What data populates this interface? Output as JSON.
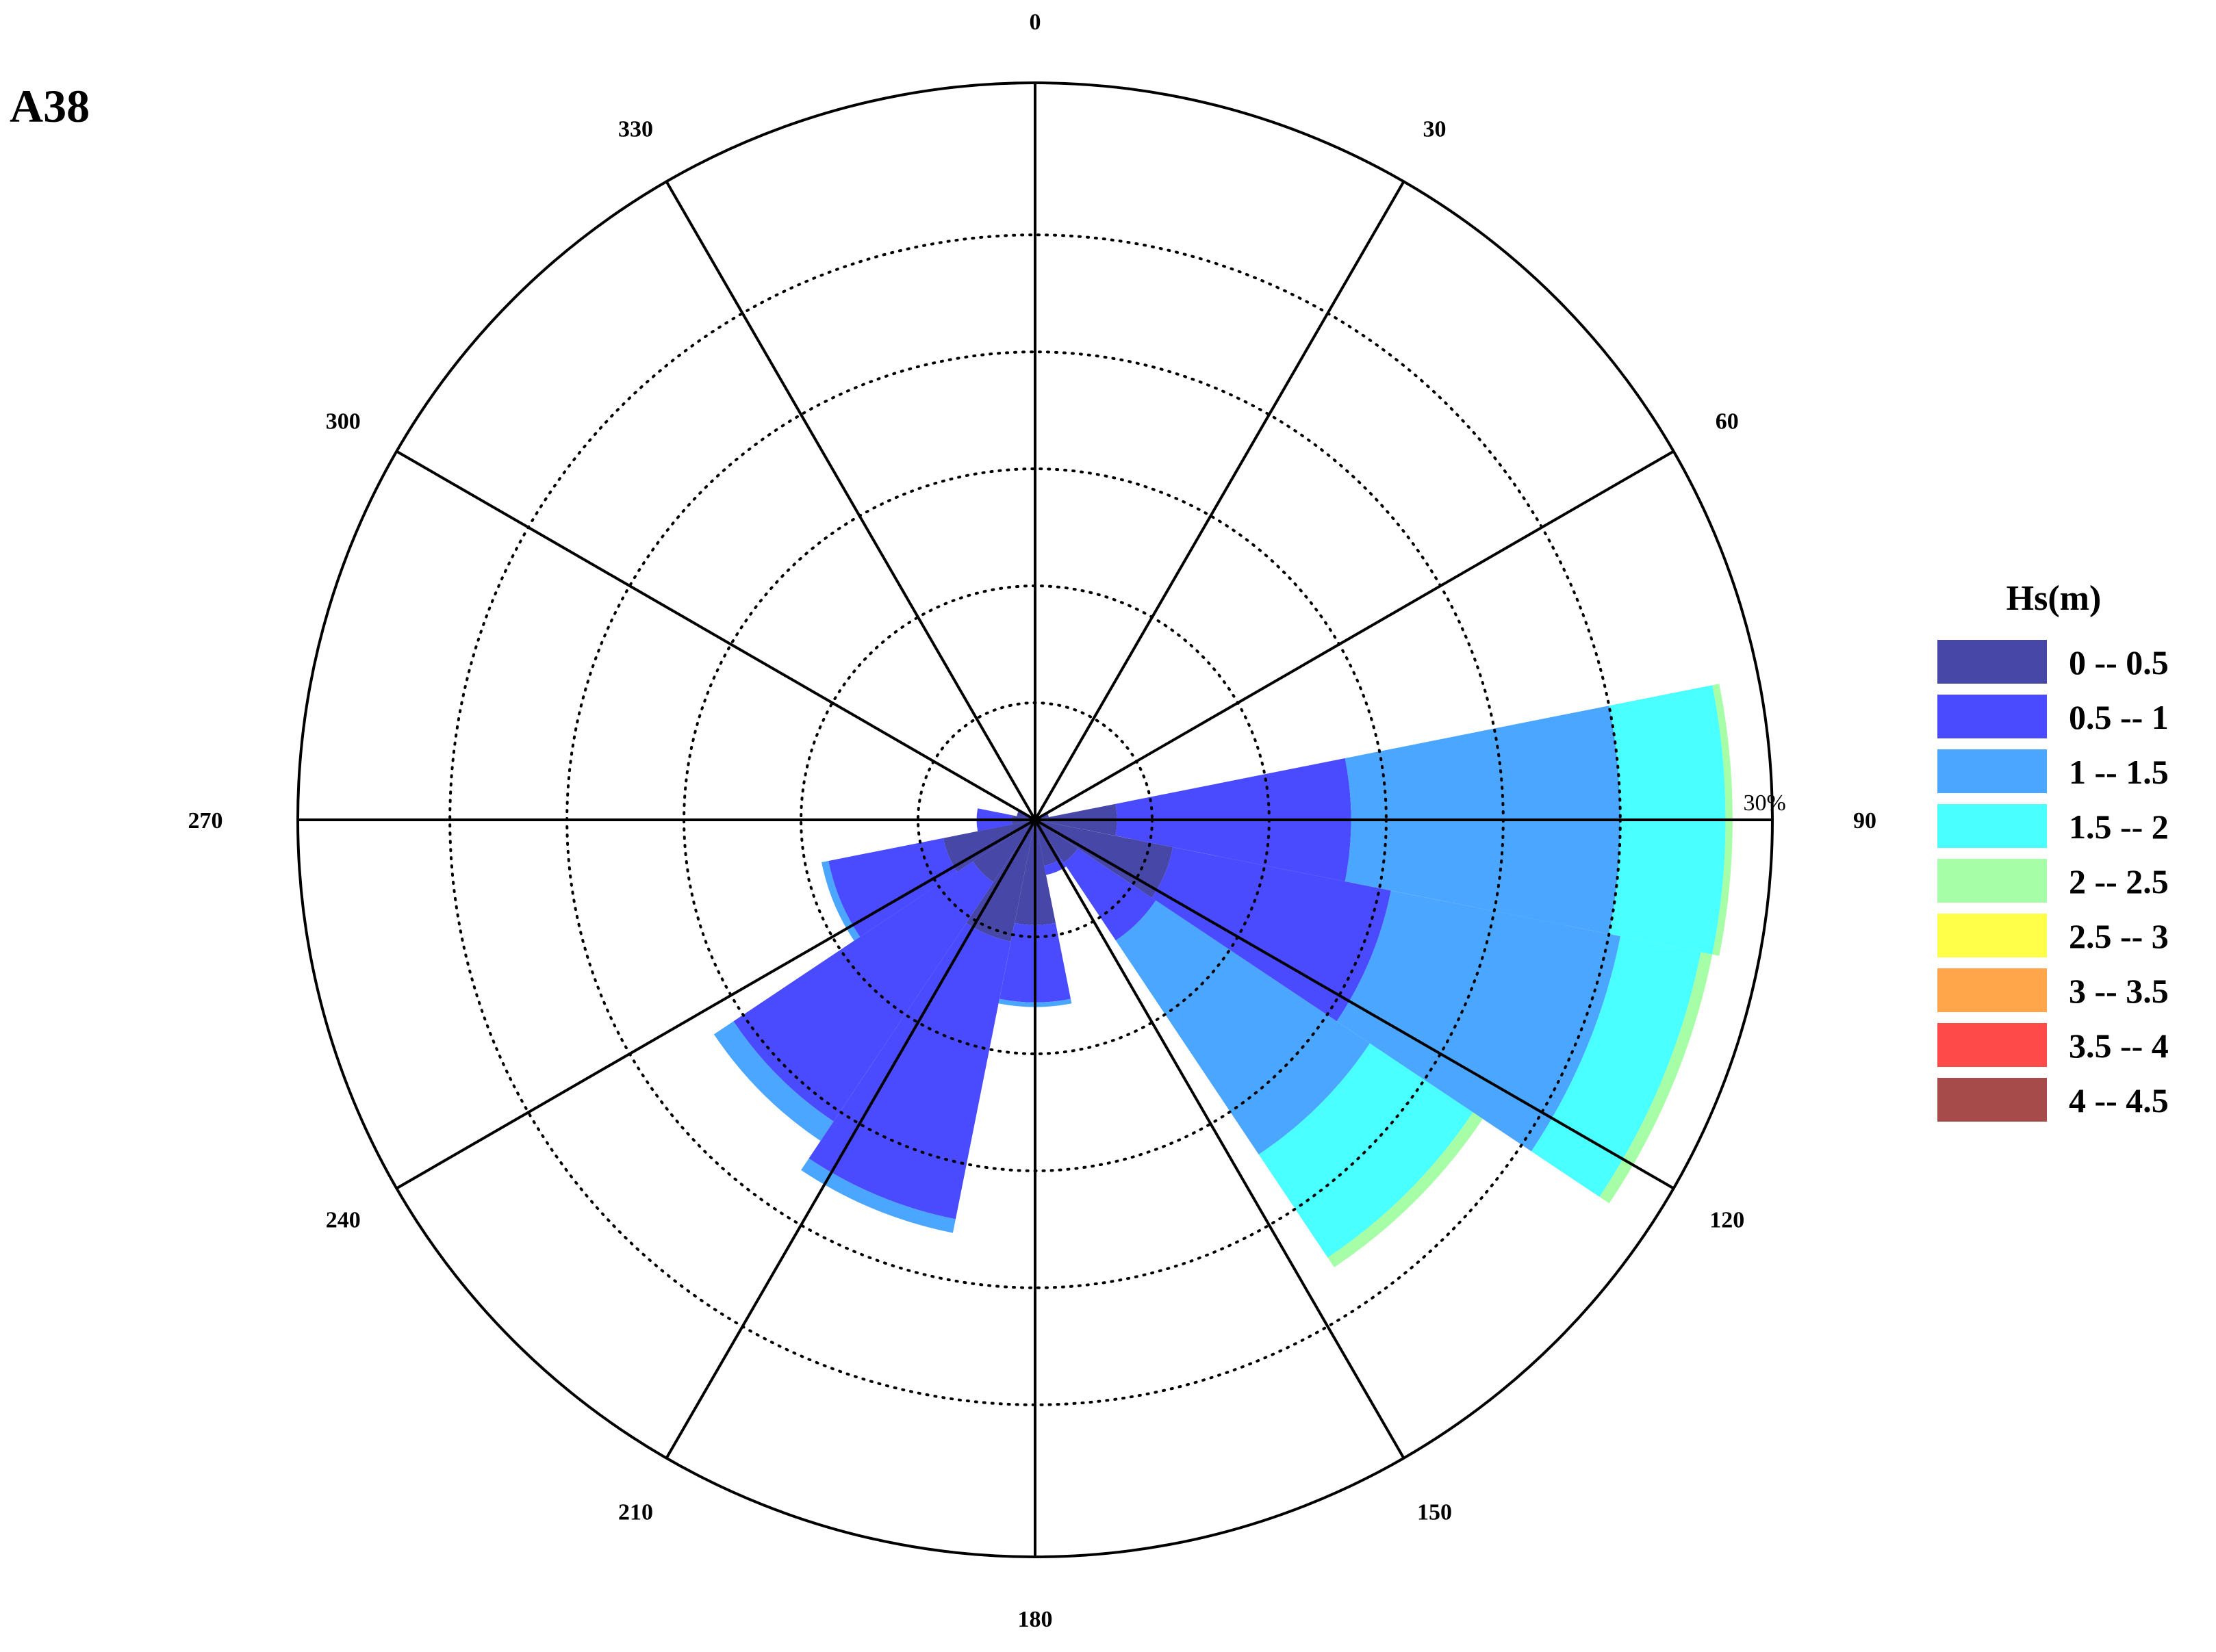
{
  "panel_label": "A38",
  "chart_data": {
    "type": "wind_rose",
    "title": "",
    "angle_labels": [
      "0",
      "30",
      "60",
      "90",
      "120",
      "150",
      "180",
      "210",
      "240",
      "270",
      "300",
      "330"
    ],
    "radial_max_percent": 30,
    "radial_max_label": "30%",
    "legend_title": "Hs(m)",
    "bins": [
      {
        "label": "0 -- 0.5",
        "color": "#4747a8"
      },
      {
        "label": "0.5 -- 1",
        "color": "#4a4aff"
      },
      {
        "label": "1 -- 1.5",
        "color": "#4aa6ff"
      },
      {
        "label": "1.5 -- 2",
        "color": "#4affff"
      },
      {
        "label": "2 -- 2.5",
        "color": "#a6ffa6"
      },
      {
        "label": "2.5 -- 3",
        "color": "#ffff4a"
      },
      {
        "label": "3 -- 3.5",
        "color": "#ffa64a"
      },
      {
        "label": "3.5 -- 4",
        "color": "#ff4a4a"
      },
      {
        "label": "4 -- 4.5",
        "color": "#a64a4a"
      }
    ],
    "sector_width_deg": 22.5,
    "sectors": [
      {
        "direction": 90,
        "cumulative": [
          3.5,
          13.5,
          25.0,
          29.5,
          29.8
        ]
      },
      {
        "direction": 112.5,
        "cumulative": [
          6.0,
          15.5,
          25.5,
          29.0,
          29.5
        ]
      },
      {
        "direction": 135,
        "cumulative": [
          2.2,
          6.2,
          17.2,
          22.5,
          23.0
        ]
      },
      {
        "direction": 157.5,
        "cumulative": [
          2.0,
          2.4
        ]
      },
      {
        "direction": 180,
        "cumulative": [
          4.5,
          7.8,
          8.0
        ]
      },
      {
        "direction": 202.5,
        "cumulative": [
          5.3,
          17.4,
          18.0
        ]
      },
      {
        "direction": 225,
        "cumulative": [
          3.2,
          15.5,
          16.5
        ]
      },
      {
        "direction": 247.5,
        "cumulative": [
          4.0,
          9.0,
          9.3
        ]
      },
      {
        "direction": 270,
        "cumulative": [
          1.0,
          2.5
        ]
      },
      {
        "direction": 292.5,
        "cumulative": [
          0.8
        ]
      },
      {
        "direction": 67.5,
        "cumulative": [
          0.6
        ]
      }
    ]
  }
}
